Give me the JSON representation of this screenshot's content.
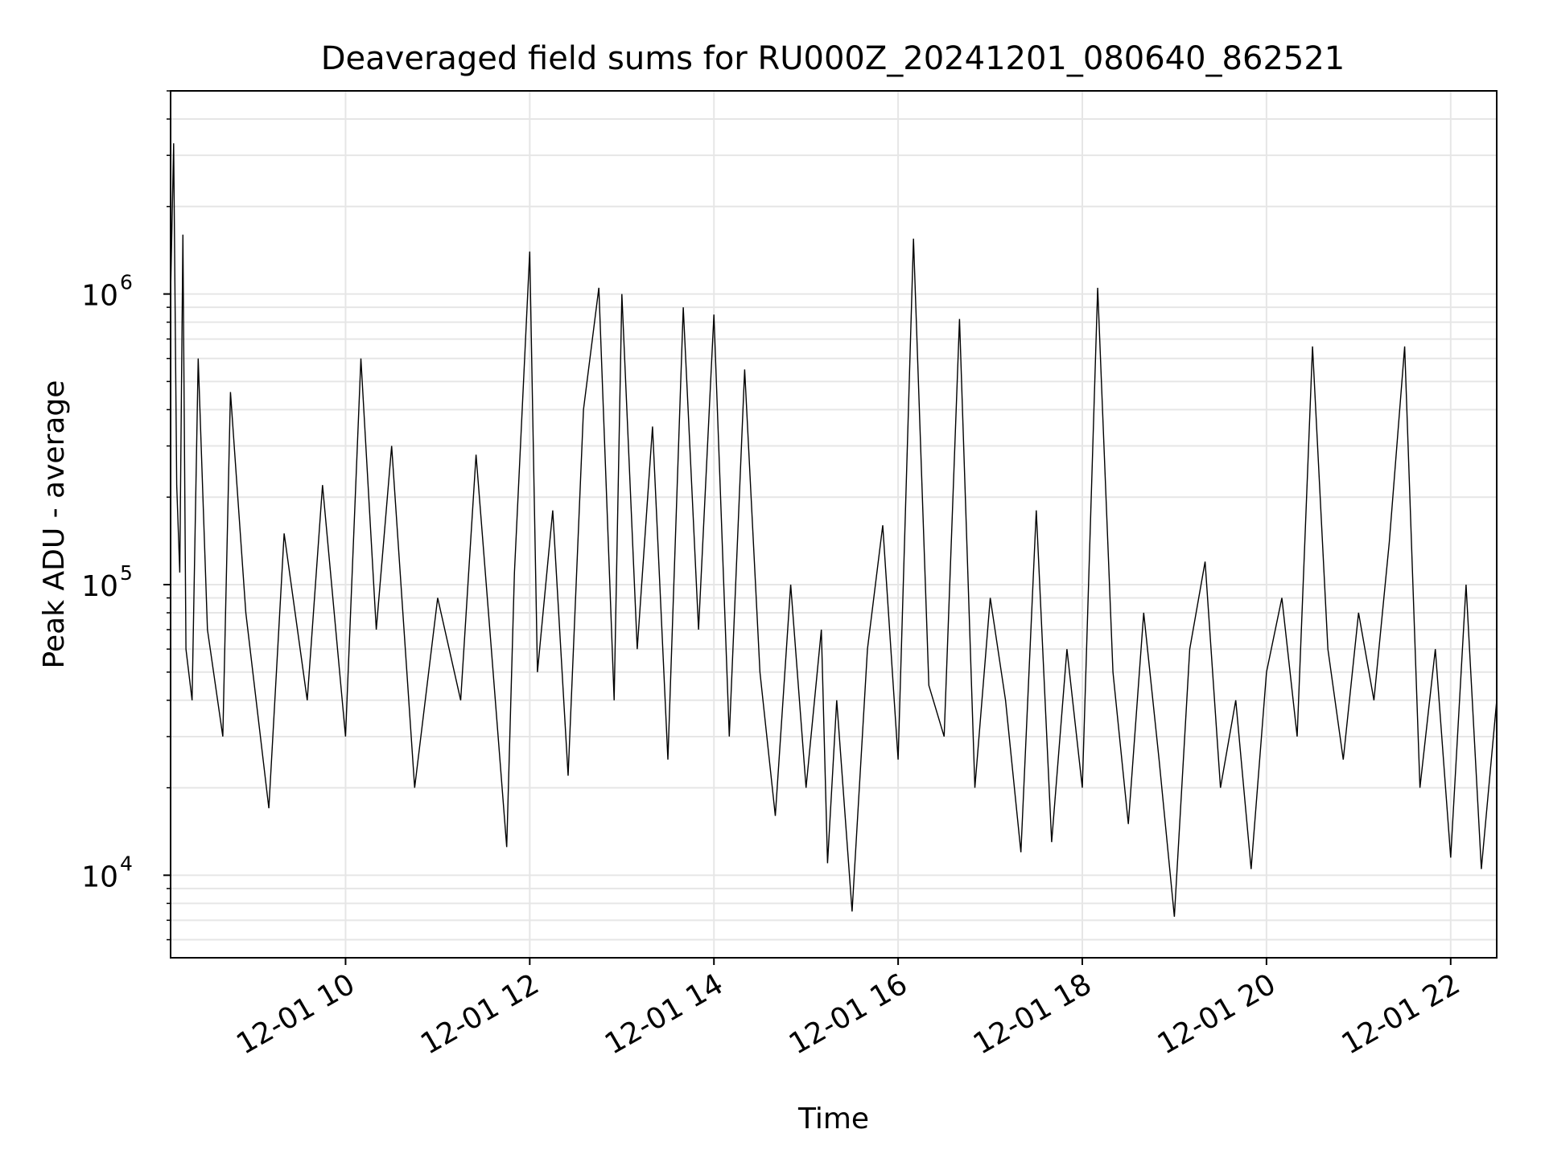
{
  "chart_data": {
    "type": "line",
    "title": "Deaveraged field sums for RU000Z_20241201_080640_862521",
    "xlabel": "Time",
    "ylabel": "Peak ADU - average",
    "xlim": [
      "2024-12-01 08:06",
      "2024-12-01 22:30"
    ],
    "ylim": [
      5200,
      5000000
    ],
    "yscale": "log",
    "grid": true,
    "grid_color": "#e6e6e6",
    "line_color": "#000000",
    "x_ticks": [
      {
        "value": "2024-12-01 10:00",
        "label": "12-01 10"
      },
      {
        "value": "2024-12-01 12:00",
        "label": "12-01 12"
      },
      {
        "value": "2024-12-01 14:00",
        "label": "12-01 14"
      },
      {
        "value": "2024-12-01 16:00",
        "label": "12-01 16"
      },
      {
        "value": "2024-12-01 18:00",
        "label": "12-01 18"
      },
      {
        "value": "2024-12-01 20:00",
        "label": "12-01 20"
      },
      {
        "value": "2024-12-01 22:00",
        "label": "12-01 22"
      }
    ],
    "y_ticks": [
      {
        "value": 10000,
        "base": "10",
        "exp": "4"
      },
      {
        "value": 100000,
        "base": "10",
        "exp": "5"
      },
      {
        "value": 1000000,
        "base": "10",
        "exp": "6"
      }
    ],
    "series": [
      {
        "values": [
          [
            "2024-12-01 08:06",
            1000000
          ],
          [
            "2024-12-01 08:08",
            3300000
          ],
          [
            "2024-12-01 08:10",
            220000
          ],
          [
            "2024-12-01 08:12",
            110000
          ],
          [
            "2024-12-01 08:14",
            1600000
          ],
          [
            "2024-12-01 08:16",
            60000
          ],
          [
            "2024-12-01 08:20",
            40000
          ],
          [
            "2024-12-01 08:24",
            600000
          ],
          [
            "2024-12-01 08:30",
            70000
          ],
          [
            "2024-12-01 08:40",
            30000
          ],
          [
            "2024-12-01 08:45",
            460000
          ],
          [
            "2024-12-01 08:55",
            80000
          ],
          [
            "2024-12-01 09:10",
            17000
          ],
          [
            "2024-12-01 09:20",
            150000
          ],
          [
            "2024-12-01 09:35",
            40000
          ],
          [
            "2024-12-01 09:45",
            220000
          ],
          [
            "2024-12-01 10:00",
            30000
          ],
          [
            "2024-12-01 10:10",
            600000
          ],
          [
            "2024-12-01 10:20",
            70000
          ],
          [
            "2024-12-01 10:30",
            300000
          ],
          [
            "2024-12-01 10:45",
            20000
          ],
          [
            "2024-12-01 11:00",
            90000
          ],
          [
            "2024-12-01 11:15",
            40000
          ],
          [
            "2024-12-01 11:25",
            280000
          ],
          [
            "2024-12-01 11:35",
            60000
          ],
          [
            "2024-12-01 11:45",
            12500
          ],
          [
            "2024-12-01 11:50",
            110000
          ],
          [
            "2024-12-01 12:00",
            1400000
          ],
          [
            "2024-12-01 12:05",
            50000
          ],
          [
            "2024-12-01 12:15",
            180000
          ],
          [
            "2024-12-01 12:25",
            22000
          ],
          [
            "2024-12-01 12:35",
            400000
          ],
          [
            "2024-12-01 12:45",
            1050000
          ],
          [
            "2024-12-01 12:55",
            40000
          ],
          [
            "2024-12-01 13:00",
            1000000
          ],
          [
            "2024-12-01 13:10",
            60000
          ],
          [
            "2024-12-01 13:20",
            350000
          ],
          [
            "2024-12-01 13:30",
            25000
          ],
          [
            "2024-12-01 13:40",
            900000
          ],
          [
            "2024-12-01 13:50",
            70000
          ],
          [
            "2024-12-01 14:00",
            850000
          ],
          [
            "2024-12-01 14:10",
            30000
          ],
          [
            "2024-12-01 14:20",
            550000
          ],
          [
            "2024-12-01 14:30",
            50000
          ],
          [
            "2024-12-01 14:40",
            16000
          ],
          [
            "2024-12-01 14:50",
            100000
          ],
          [
            "2024-12-01 15:00",
            20000
          ],
          [
            "2024-12-01 15:10",
            70000
          ],
          [
            "2024-12-01 15:14",
            11000
          ],
          [
            "2024-12-01 15:20",
            40000
          ],
          [
            "2024-12-01 15:30",
            7500
          ],
          [
            "2024-12-01 15:40",
            60000
          ],
          [
            "2024-12-01 15:50",
            160000
          ],
          [
            "2024-12-01 16:00",
            25000
          ],
          [
            "2024-12-01 16:10",
            1550000
          ],
          [
            "2024-12-01 16:20",
            45000
          ],
          [
            "2024-12-01 16:30",
            30000
          ],
          [
            "2024-12-01 16:40",
            820000
          ],
          [
            "2024-12-01 16:50",
            20000
          ],
          [
            "2024-12-01 17:00",
            90000
          ],
          [
            "2024-12-01 17:10",
            40000
          ],
          [
            "2024-12-01 17:20",
            12000
          ],
          [
            "2024-12-01 17:30",
            180000
          ],
          [
            "2024-12-01 17:40",
            13000
          ],
          [
            "2024-12-01 17:50",
            60000
          ],
          [
            "2024-12-01 18:00",
            20000
          ],
          [
            "2024-12-01 18:10",
            1050000
          ],
          [
            "2024-12-01 18:20",
            50000
          ],
          [
            "2024-12-01 18:30",
            15000
          ],
          [
            "2024-12-01 18:40",
            80000
          ],
          [
            "2024-12-01 18:50",
            25000
          ],
          [
            "2024-12-01 19:00",
            7200
          ],
          [
            "2024-12-01 19:10",
            60000
          ],
          [
            "2024-12-01 19:20",
            120000
          ],
          [
            "2024-12-01 19:30",
            20000
          ],
          [
            "2024-12-01 19:40",
            40000
          ],
          [
            "2024-12-01 19:50",
            10500
          ],
          [
            "2024-12-01 20:00",
            50000
          ],
          [
            "2024-12-01 20:10",
            90000
          ],
          [
            "2024-12-01 20:20",
            30000
          ],
          [
            "2024-12-01 20:30",
            660000
          ],
          [
            "2024-12-01 20:40",
            60000
          ],
          [
            "2024-12-01 20:50",
            25000
          ],
          [
            "2024-12-01 21:00",
            80000
          ],
          [
            "2024-12-01 21:10",
            40000
          ],
          [
            "2024-12-01 21:20",
            140000
          ],
          [
            "2024-12-01 21:30",
            660000
          ],
          [
            "2024-12-01 21:40",
            20000
          ],
          [
            "2024-12-01 21:50",
            60000
          ],
          [
            "2024-12-01 22:00",
            11500
          ],
          [
            "2024-12-01 22:10",
            100000
          ],
          [
            "2024-12-01 22:20",
            10500
          ],
          [
            "2024-12-01 22:30",
            40000
          ]
        ]
      }
    ]
  }
}
